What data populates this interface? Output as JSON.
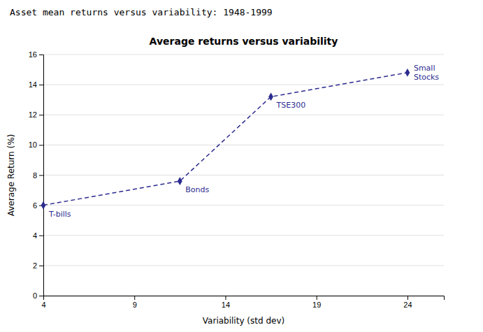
{
  "chart_data": {
    "type": "line",
    "subtitle": "Asset mean returns versus variability: 1948-1999",
    "title": "Average returns versus variability",
    "x_label": "Variability (std dev)",
    "y_label": "Average Return (%)",
    "x": [
      4.0,
      11.5,
      16.5,
      24.0
    ],
    "values": [
      6.0,
      7.6,
      13.2,
      14.8
    ],
    "color": "#2b2b8f",
    "marker": "diamond",
    "line_style": "dashed",
    "xlim": [
      4,
      26
    ],
    "ylim": [
      0,
      16
    ],
    "xticks": [
      4,
      9,
      14,
      19,
      24
    ],
    "yticks": [
      0,
      2,
      4,
      6,
      8,
      10,
      12,
      14,
      16
    ],
    "grid": "y",
    "annotations": [
      {
        "text": "T-bills",
        "x": 4.0,
        "y": 6.0
      },
      {
        "text": "Bonds",
        "x": 11.5,
        "y": 7.6
      },
      {
        "text": "TSE300",
        "x": 16.5,
        "y": 13.2
      },
      {
        "text": "Small\nStocks",
        "x": 24.0,
        "y": 14.8
      }
    ]
  }
}
